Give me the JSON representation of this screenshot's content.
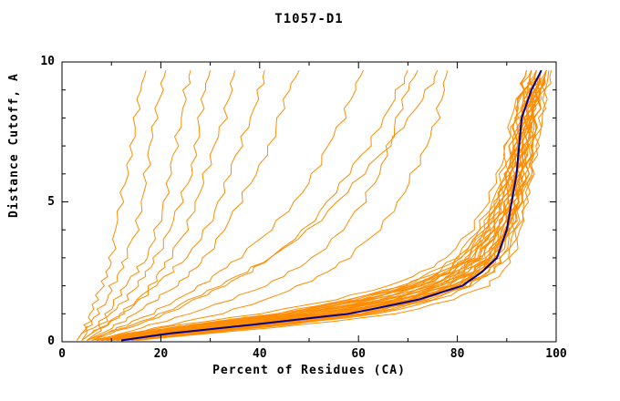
{
  "chart_data": {
    "type": "line",
    "title": "T1057-D1",
    "xlabel": "Percent of Residues (CA)",
    "ylabel": "Distance Cutoff, A",
    "xlim": [
      0,
      100
    ],
    "ylim": [
      0,
      10
    ],
    "x_major_ticks": [
      0,
      20,
      40,
      60,
      80,
      100
    ],
    "x_minor_ticks": [
      10,
      30,
      50,
      70,
      90
    ],
    "y_major_ticks": [
      0,
      5,
      10
    ],
    "y_minor_ticks": [
      1,
      2,
      3,
      4,
      6,
      7,
      8,
      9
    ],
    "grid": false,
    "legend": "none",
    "colors": {
      "models": "#ff8c00",
      "highlight": "#00008b",
      "axis": "#000000"
    },
    "curves": {
      "y_grid": [
        0.05,
        0.3,
        0.6,
        1.0,
        1.5,
        2.0,
        2.5,
        3.0,
        4.0,
        5.0,
        6.0,
        7.0,
        8.0,
        9.0,
        9.7
      ],
      "orange": [
        [
          9,
          18,
          30,
          48,
          63,
          73,
          79,
          83,
          87,
          89,
          91,
          92,
          93,
          94,
          95
        ],
        [
          10,
          22,
          36,
          55,
          69,
          78,
          83,
          86,
          89,
          91,
          92,
          93,
          94,
          95,
          96
        ],
        [
          8,
          16,
          28,
          45,
          60,
          71,
          77,
          81,
          86,
          88,
          90,
          91,
          92,
          93,
          94
        ],
        [
          12,
          25,
          40,
          60,
          73,
          80,
          85,
          88,
          90,
          92,
          93,
          94,
          95,
          96,
          97
        ],
        [
          7,
          14,
          26,
          44,
          58,
          69,
          76,
          80,
          85,
          88,
          90,
          91,
          92,
          94,
          95
        ],
        [
          11,
          24,
          38,
          57,
          70,
          79,
          84,
          87,
          90,
          92,
          93,
          94,
          95,
          96,
          97
        ],
        [
          9,
          20,
          33,
          52,
          66,
          76,
          81,
          85,
          88,
          90,
          92,
          93,
          94,
          95,
          96
        ],
        [
          13,
          27,
          43,
          62,
          74,
          82,
          86,
          89,
          91,
          93,
          94,
          95,
          96,
          97,
          98
        ],
        [
          6,
          13,
          24,
          40,
          55,
          66,
          73,
          78,
          83,
          86,
          88,
          90,
          91,
          93,
          94
        ],
        [
          10,
          21,
          35,
          54,
          68,
          77,
          82,
          86,
          89,
          91,
          92,
          93,
          94,
          96,
          97
        ],
        [
          8,
          17,
          29,
          47,
          62,
          72,
          78,
          82,
          86,
          89,
          91,
          92,
          93,
          94,
          95
        ],
        [
          12,
          26,
          41,
          60,
          72,
          80,
          85,
          88,
          91,
          92,
          94,
          95,
          95,
          97,
          98
        ],
        [
          9,
          19,
          32,
          50,
          65,
          75,
          80,
          84,
          88,
          90,
          91,
          93,
          94,
          95,
          96
        ],
        [
          11,
          23,
          37,
          56,
          70,
          78,
          83,
          87,
          90,
          91,
          93,
          94,
          95,
          96,
          97
        ],
        [
          7,
          15,
          27,
          45,
          59,
          70,
          77,
          81,
          85,
          88,
          90,
          91,
          92,
          93,
          95
        ],
        [
          10,
          22,
          36,
          55,
          68,
          77,
          83,
          86,
          89,
          91,
          92,
          94,
          95,
          96,
          97
        ],
        [
          14,
          28,
          44,
          63,
          75,
          82,
          87,
          89,
          92,
          93,
          95,
          95,
          96,
          97,
          98
        ],
        [
          8,
          18,
          31,
          49,
          64,
          74,
          80,
          83,
          87,
          90,
          91,
          92,
          94,
          95,
          96
        ],
        [
          12,
          24,
          39,
          58,
          71,
          79,
          84,
          87,
          90,
          92,
          93,
          94,
          95,
          97,
          98
        ],
        [
          9,
          20,
          34,
          53,
          67,
          76,
          82,
          85,
          89,
          91,
          92,
          93,
          94,
          96,
          97
        ],
        [
          11,
          23,
          38,
          57,
          70,
          79,
          84,
          87,
          90,
          92,
          93,
          94,
          95,
          96,
          98
        ],
        [
          7,
          16,
          28,
          46,
          61,
          71,
          78,
          82,
          86,
          88,
          90,
          92,
          93,
          94,
          95
        ],
        [
          13,
          26,
          42,
          61,
          73,
          81,
          86,
          88,
          91,
          93,
          94,
          95,
          96,
          97,
          98
        ],
        [
          10,
          21,
          34,
          53,
          67,
          76,
          81,
          85,
          88,
          91,
          92,
          93,
          94,
          95,
          97
        ],
        [
          8,
          17,
          30,
          48,
          63,
          73,
          79,
          83,
          87,
          89,
          91,
          92,
          93,
          95,
          96
        ],
        [
          15,
          30,
          48,
          68,
          79,
          86,
          89,
          91,
          93,
          94,
          95,
          96,
          97,
          98,
          98.5
        ],
        [
          9,
          19,
          31,
          50,
          64,
          74,
          80,
          84,
          87,
          90,
          91,
          92,
          93,
          95,
          96
        ],
        [
          11,
          22,
          37,
          56,
          69,
          78,
          83,
          86,
          90,
          91,
          93,
          94,
          95,
          96,
          97
        ],
        [
          13,
          25,
          41,
          59,
          72,
          80,
          85,
          88,
          91,
          92,
          94,
          95,
          96,
          97,
          98
        ],
        [
          8,
          16,
          29,
          46,
          61,
          72,
          78,
          82,
          86,
          89,
          90,
          92,
          93,
          94,
          96
        ],
        [
          10,
          20,
          33,
          51,
          66,
          75,
          81,
          84,
          88,
          90,
          92,
          93,
          94,
          95,
          97
        ],
        [
          12,
          24,
          40,
          59,
          71,
          80,
          84,
          87,
          90,
          92,
          93,
          94,
          96,
          97,
          98
        ],
        [
          7,
          15,
          26,
          43,
          58,
          69,
          75,
          80,
          84,
          87,
          89,
          90,
          92,
          93,
          94
        ],
        [
          14,
          29,
          45,
          64,
          76,
          83,
          87,
          90,
          92,
          94,
          95,
          96,
          97,
          98,
          99
        ],
        [
          3,
          4,
          5,
          6,
          7,
          8,
          9,
          10,
          11,
          12,
          13,
          14,
          15,
          16,
          17
        ],
        [
          3,
          4,
          6,
          7,
          9,
          10,
          12,
          13,
          15,
          16,
          17,
          18,
          19,
          20,
          21
        ],
        [
          4,
          5,
          7,
          9,
          11,
          13,
          15,
          17,
          19,
          21,
          22,
          23,
          24,
          25,
          26
        ],
        [
          4,
          6,
          8,
          10,
          13,
          15,
          17,
          19,
          22,
          24,
          26,
          27,
          28,
          29,
          30
        ],
        [
          5,
          7,
          9,
          12,
          15,
          18,
          20,
          22,
          25,
          27,
          29,
          31,
          33,
          34,
          35
        ],
        [
          4,
          6,
          9,
          12,
          16,
          19,
          22,
          25,
          29,
          32,
          34,
          36,
          38,
          40,
          41
        ],
        [
          5,
          8,
          11,
          15,
          19,
          23,
          26,
          29,
          33,
          36,
          39,
          42,
          44,
          46,
          48
        ],
        [
          6,
          9,
          13,
          18,
          23,
          28,
          32,
          36,
          42,
          47,
          51,
          54,
          57,
          59,
          61
        ],
        [
          6,
          10,
          15,
          21,
          27,
          33,
          38,
          42,
          49,
          54,
          58,
          62,
          65,
          68,
          70
        ],
        [
          7,
          12,
          18,
          26,
          34,
          41,
          46,
          51,
          57,
          61,
          64,
          66,
          68,
          70,
          72
        ],
        [
          8,
          14,
          22,
          32,
          41,
          48,
          54,
          58,
          64,
          68,
          71,
          74,
          76,
          77,
          78
        ],
        [
          5,
          9,
          14,
          20,
          26,
          32,
          37,
          42,
          50,
          56,
          61,
          66,
          70,
          74,
          76
        ]
      ],
      "blue": [
        12,
        22,
        38,
        58,
        72,
        81,
        85,
        88,
        90,
        91,
        92,
        92.5,
        93,
        95,
        97
      ]
    }
  }
}
